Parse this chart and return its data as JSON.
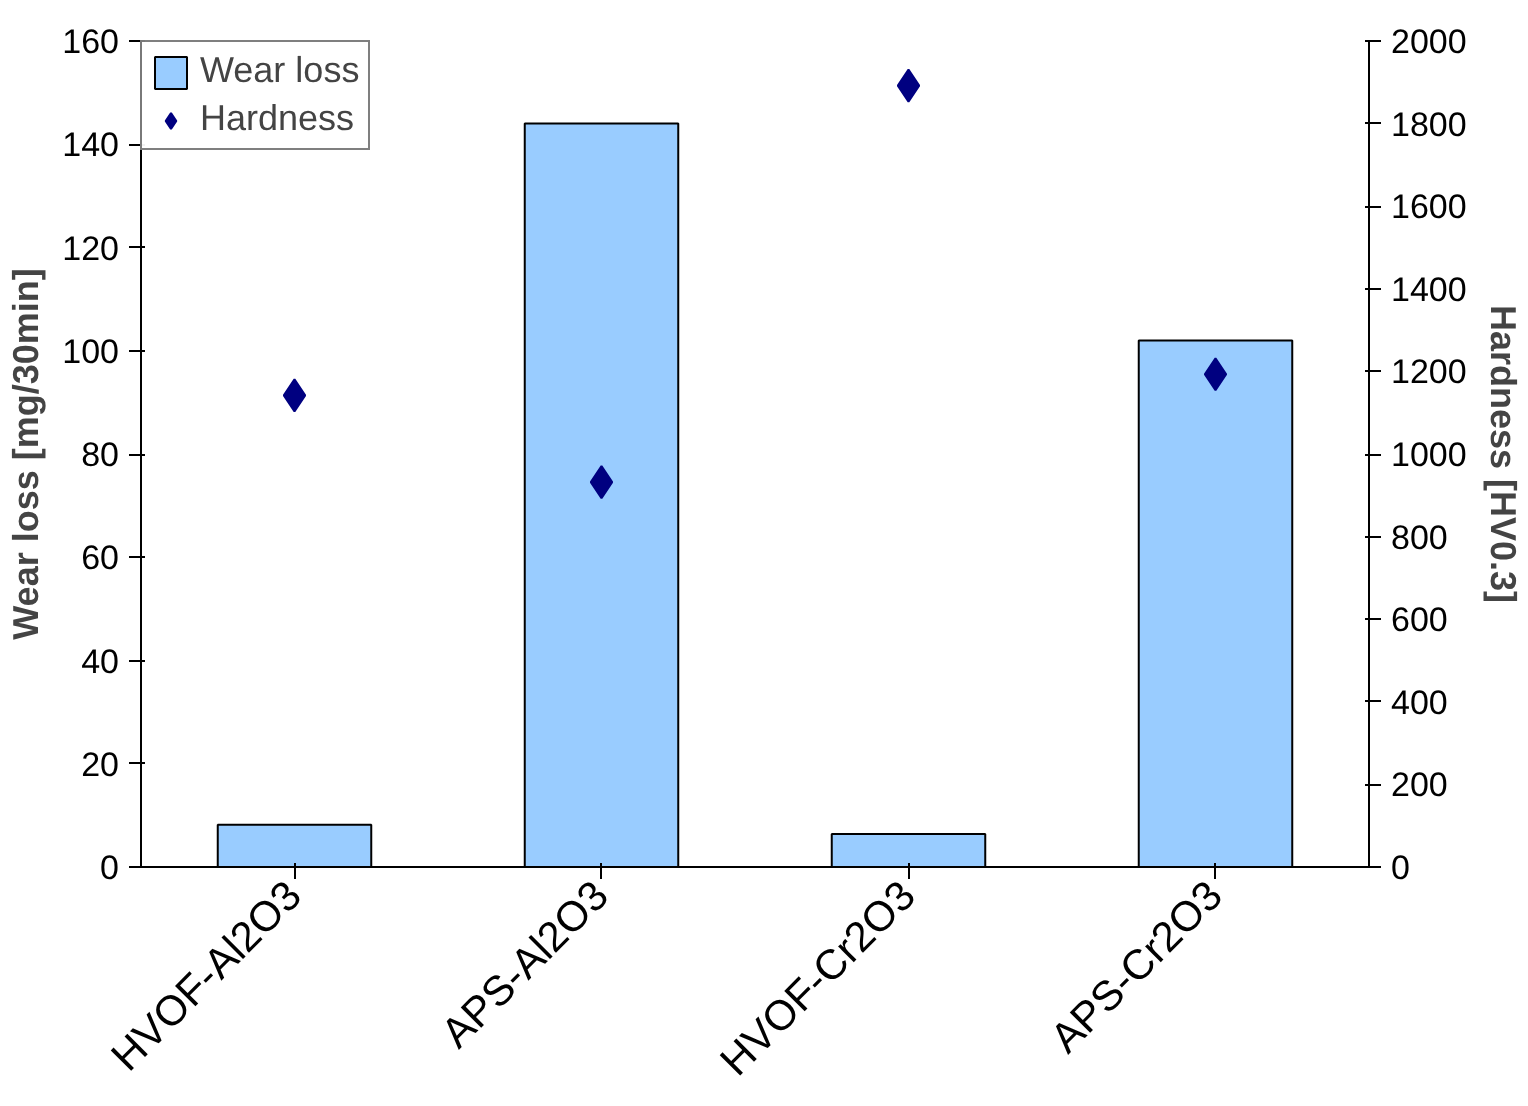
{
  "chart_data": {
    "type": "bar",
    "categories": [
      "HVOF-Al2O3",
      "APS-Al2O3",
      "HVOF-Cr2O3",
      "APS-Cr2O3"
    ],
    "ylabel": "Wear loss [mg/30min]",
    "y2label": "Hardness [HV0.3]",
    "ylim": [
      0,
      160
    ],
    "yticks": [
      0,
      20,
      40,
      60,
      80,
      100,
      120,
      140,
      160
    ],
    "y2lim": [
      0,
      2000
    ],
    "y2ticks": [
      0,
      200,
      400,
      600,
      800,
      1000,
      1200,
      1400,
      1600,
      1800,
      2000
    ],
    "grid": false,
    "legend": "top left",
    "series": [
      {
        "name": "Wear loss",
        "color": "#99ccff",
        "values": [
          8.2,
          144,
          6.4,
          102
        ]
      },
      {
        "name": "Hardness",
        "type": "scatter",
        "axis": "y2",
        "marker": "diamond",
        "color": "#000080",
        "values": [
          1142,
          932,
          1892,
          1193
        ]
      }
    ]
  }
}
